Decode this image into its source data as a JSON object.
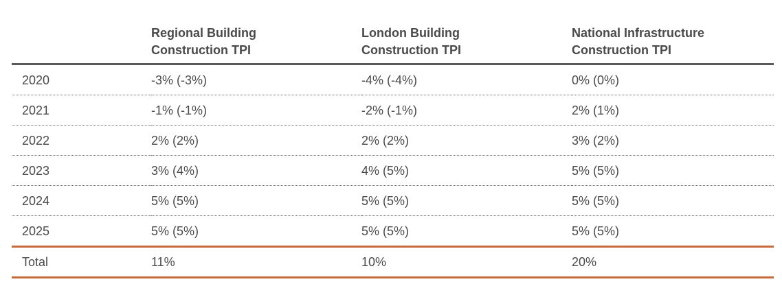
{
  "table": {
    "headers": [
      "",
      "Regional Building\nConstruction TPI",
      "London Building\nConstruction TPI",
      "National Infrastructure\nConstruction TPI"
    ],
    "header_lines": [
      [],
      [
        "Regional Building",
        "Construction TPI"
      ],
      [
        "London Building",
        "Construction TPI"
      ],
      [
        "National Infrastructure",
        "Construction TPI"
      ]
    ],
    "rows": [
      [
        "2020",
        "-3% (-3%)",
        "-4% (-4%)",
        "0% (0%)"
      ],
      [
        "2021",
        "-1% (-1%)",
        "-2% (-1%)",
        "2% (1%)"
      ],
      [
        "2022",
        "2% (2%)",
        "2% (2%)",
        "3% (2%)"
      ],
      [
        "2023",
        "3% (4%)",
        "4% (5%)",
        "5% (5%)"
      ],
      [
        "2024",
        "5% (5%)",
        "5% (5%)",
        "5% (5%)"
      ],
      [
        "2025",
        "5% (5%)",
        "5% (5%)",
        "5% (5%)"
      ]
    ],
    "total": [
      "Total",
      "11%",
      "10%",
      "20%"
    ]
  },
  "colors": {
    "text": "#4a4a4a",
    "header_rule": "#5a5a5a",
    "accent_rule": "#c8693a",
    "dotted_rule": "#6e6e6e"
  }
}
